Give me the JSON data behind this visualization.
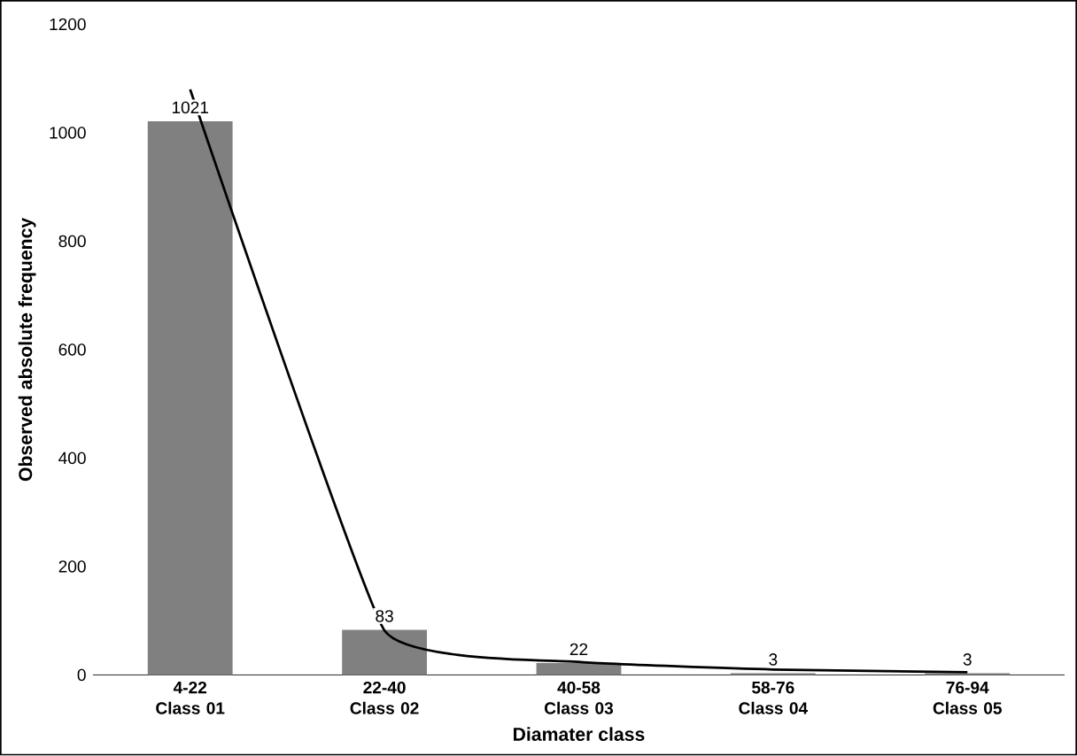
{
  "chart_data": {
    "type": "bar",
    "xlabel": "Diamater class",
    "ylabel": "Observed absolute frequency",
    "categories": [
      "4-22 Class 01",
      "22-40 Class 02",
      "40-58 Class 03",
      "58-76 Class 04",
      "76-94 Class 05"
    ],
    "values": [
      1021,
      83,
      22,
      3,
      3
    ],
    "value_labels": [
      "1021",
      "83",
      "22",
      "3",
      "3"
    ],
    "color": "#808080",
    "ylim": [
      0,
      1200
    ],
    "yticks": [
      0,
      200,
      400,
      600,
      800,
      1000,
      1200
    ],
    "grid": false,
    "series": [
      {
        "type": "line",
        "color": "#000000",
        "values": [
          1080,
          82,
          24,
          10,
          5
        ]
      }
    ]
  }
}
